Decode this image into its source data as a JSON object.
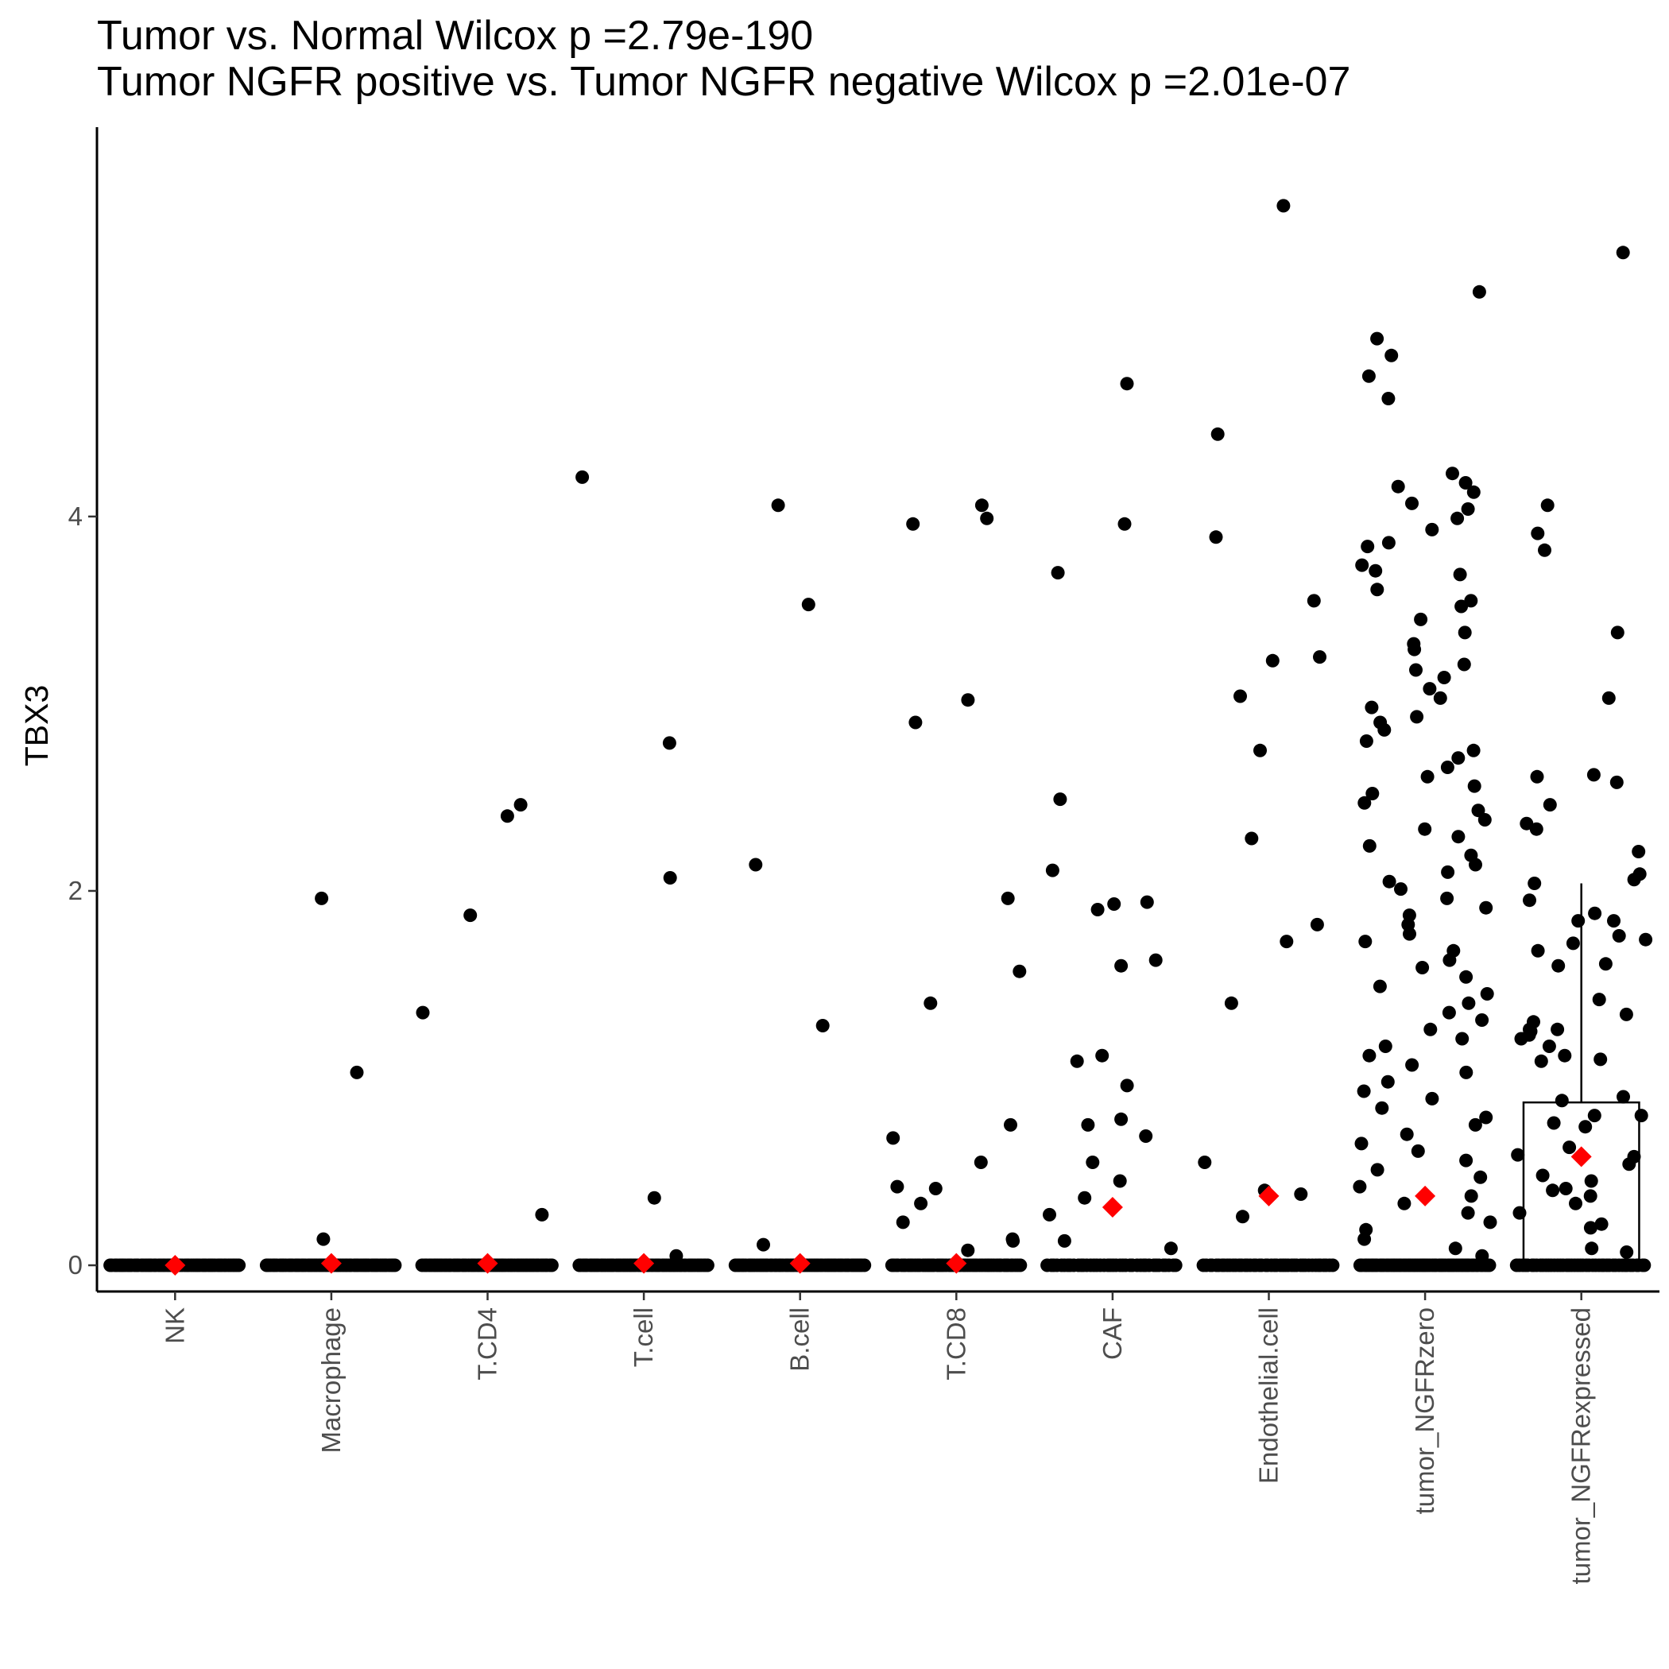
{
  "chart_data": {
    "type": "scatter",
    "subtype": "jitter strip plot with boxplot and mean markers",
    "title": "Tumor vs. Normal Wilcox p =2.79e-190",
    "subtitle": "Tumor NGFR positive vs. Tumor NGFR negative Wilcox p =2.01e-07",
    "xlabel": "",
    "ylabel": "TBX3",
    "ylim": [
      -0.14,
      6.08
    ],
    "yticks": [
      0,
      2,
      4
    ],
    "grid": false,
    "legend": "none",
    "colors": {
      "points": "#000000",
      "mean_marker": "#ff0000",
      "box": "#000000"
    },
    "categories": [
      "NK",
      "Macrophage",
      "T.CD4",
      "T.cell",
      "B.cell",
      "T.CD8",
      "CAF",
      "Endothelial.cell",
      "tumor_NGFRzero",
      "tumor_NGFRexpressed"
    ],
    "means": [
      0.0,
      0.01,
      0.01,
      0.01,
      0.01,
      0.01,
      0.31,
      0.37,
      0.37,
      0.58
    ],
    "zero_point_counts": [
      60,
      60,
      60,
      60,
      60,
      55,
      40,
      45,
      60,
      45
    ],
    "nonzero_points": [
      [],
      [
        1.96,
        1.03,
        0.14
      ],
      [
        2.4,
        2.46,
        1.87,
        1.35,
        0.27
      ],
      [
        4.21,
        2.79,
        2.07,
        0.36,
        0.05
      ],
      [
        4.06,
        3.53,
        2.14,
        1.28,
        0.11
      ],
      [
        4.06,
        3.99,
        3.96,
        3.02,
        2.9,
        1.96,
        1.57,
        1.4,
        0.75,
        0.68,
        0.55,
        0.42,
        0.41,
        0.33,
        0.23,
        0.13,
        0.08,
        0.14
      ],
      [
        4.71,
        3.96,
        3.7,
        2.49,
        2.11,
        1.93,
        1.9,
        1.94,
        1.63,
        1.6,
        1.12,
        1.09,
        0.96,
        0.78,
        0.75,
        0.69,
        0.55,
        0.45,
        0.36,
        0.27,
        0.13,
        0.09
      ],
      [
        5.66,
        4.44,
        3.89,
        3.55,
        3.23,
        3.04,
        3.25,
        2.75,
        2.28,
        1.82,
        1.73,
        1.4,
        0.55,
        0.4,
        0.38,
        0.26
      ],
      [
        5.2,
        4.95,
        4.86,
        4.75,
        4.63,
        4.23,
        4.18,
        4.16,
        4.13,
        4.07,
        4.04,
        3.99,
        3.93,
        3.86,
        3.84,
        3.74,
        3.71,
        3.69,
        3.61,
        3.55,
        3.52,
        3.45,
        3.38,
        3.32,
        3.29,
        3.21,
        3.18,
        3.14,
        3.08,
        3.03,
        2.98,
        2.93,
        2.9,
        2.86,
        2.8,
        2.75,
        2.71,
        2.66,
        2.61,
        2.56,
        2.52,
        2.47,
        2.43,
        2.38,
        2.33,
        2.29,
        2.24,
        2.19,
        2.14,
        2.1,
        2.05,
        2.01,
        1.96,
        1.91,
        1.87,
        1.82,
        1.77,
        1.73,
        1.68,
        1.63,
        1.59,
        1.54,
        1.49,
        1.45,
        1.4,
        1.35,
        1.31,
        1.26,
        1.21,
        1.17,
        1.12,
        1.07,
        1.03,
        0.98,
        0.93,
        0.89,
        0.84,
        0.79,
        0.75,
        0.7,
        0.65,
        0.61,
        0.56,
        0.51,
        0.47,
        0.42,
        0.37,
        0.33,
        0.28,
        0.23,
        0.19,
        0.14,
        0.09,
        0.05
      ],
      [
        5.41,
        4.06,
        3.91,
        3.82,
        3.38,
        3.03,
        2.62,
        2.61,
        2.58,
        2.46,
        2.36,
        2.33,
        2.21,
        2.09,
        2.06,
        2.04,
        1.95,
        1.88,
        1.84,
        1.84,
        1.76,
        1.74,
        1.72,
        1.68,
        1.61,
        1.6,
        1.42,
        1.34,
        1.3,
        1.26,
        1.26,
        1.25,
        1.23,
        1.21,
        1.17,
        1.12,
        1.1,
        1.09,
        0.9,
        0.88,
        0.8,
        0.8,
        0.76,
        0.74,
        0.63,
        0.59,
        0.58,
        0.54,
        0.48,
        0.45,
        0.41,
        0.4,
        0.37,
        0.33,
        0.28,
        0.22,
        0.2,
        0.09,
        0.07
      ]
    ],
    "boxplot": {
      "category": "tumor_NGFRexpressed",
      "whisker_low": 0.0,
      "q1": 0.0,
      "median": 0.0,
      "q3": 0.87,
      "whisker_high": 2.04
    }
  }
}
